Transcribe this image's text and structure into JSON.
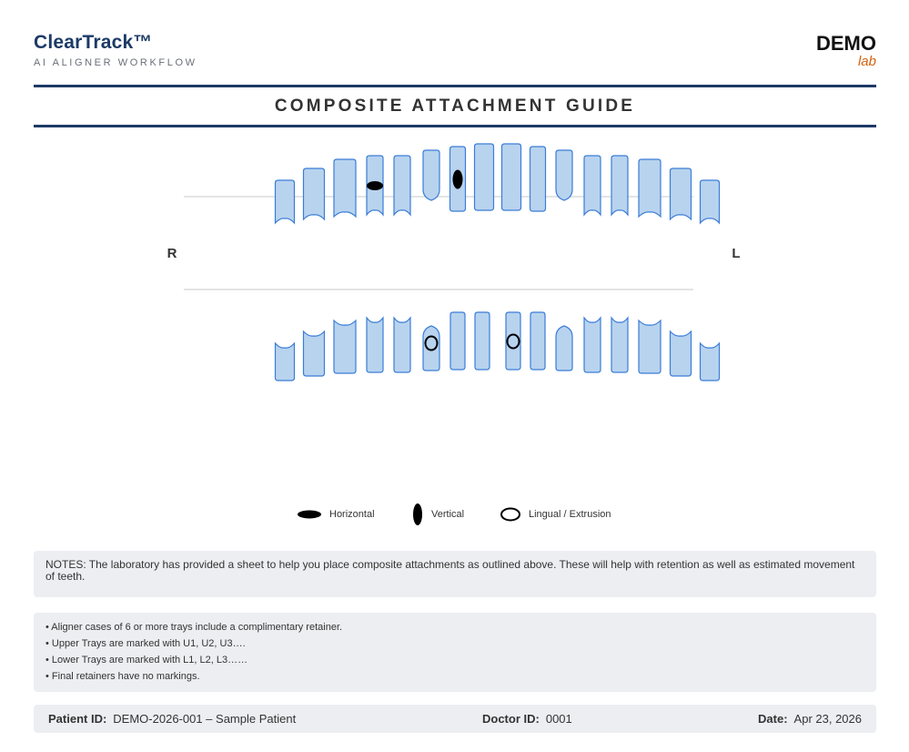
{
  "brand": {
    "name": "ClearTrack™",
    "subtitle": "AI ALIGNER WORKFLOW"
  },
  "lab": {
    "name": "DEMO",
    "subtitle": "lab"
  },
  "title": "COMPOSITE ATTACHMENT GUIDE",
  "chart_labels": {
    "right": "R",
    "left": "L"
  },
  "colors": {
    "brand_navy": "#1c3a66",
    "lab_accent": "#d4620f",
    "tooth_fill": "#b8d3ee",
    "tooth_stroke": "#3b7dd8"
  },
  "legend": [
    {
      "marker": "horizontal",
      "label": "Horizontal"
    },
    {
      "marker": "vertical",
      "label": "Vertical"
    },
    {
      "marker": "lingual",
      "label": "Lingual / Extrusion"
    }
  ],
  "attachments": {
    "upper": [
      {
        "tooth_position": 4,
        "type": "horizontal"
      },
      {
        "tooth_position": 7,
        "type": "vertical"
      }
    ],
    "lower": [
      {
        "tooth_position": 6,
        "type": "lingual"
      },
      {
        "tooth_position": 9,
        "type": "lingual"
      }
    ]
  },
  "notes": "NOTES: The laboratory has provided a sheet to help you place composite attachments as outlined above. These will help with retention as well as estimated movement of teeth.",
  "bullets": [
    "• Aligner cases of 6 or more trays include a complimentary retainer.",
    "• Upper Trays are marked with U1, U2, U3….",
    "• Lower Trays are marked with L1, L2, L3……",
    "• Final retainers have no markings."
  ],
  "footer": {
    "patient_label": "Patient ID:",
    "patient_value": "DEMO-2026-001 – Sample Patient",
    "doctor_label": "Doctor ID:",
    "doctor_value": "0001",
    "date_label": "Date:",
    "date_value": "Apr 23, 2026"
  }
}
